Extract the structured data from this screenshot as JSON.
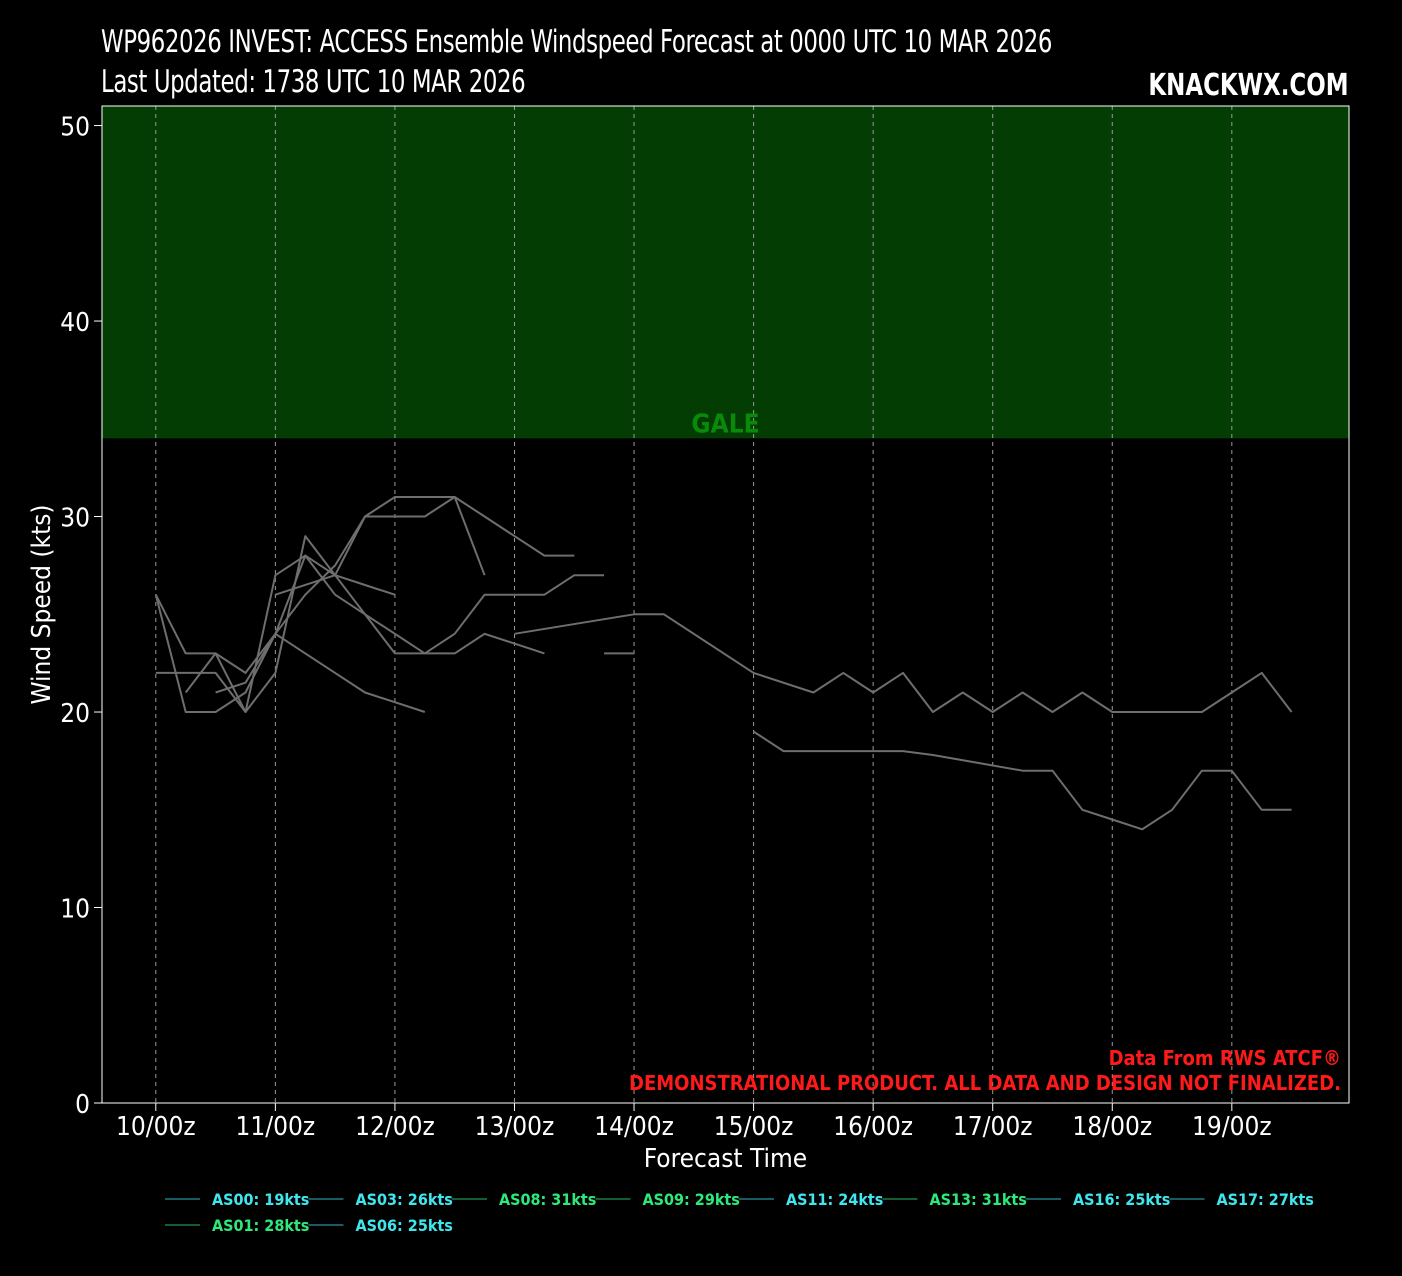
{
  "header": {
    "title": "WP962026 INVEST: ACCESS Ensemble Windspeed Forecast at 0000 UTC 10 MAR 2026",
    "subtitle": "Last Updated: 1738 UTC 10 MAR 2026",
    "brand": "KNACKWX.COM"
  },
  "notes": {
    "source": "Data From RWS ATCF®",
    "disclaimer": "DEMONSTRATIONAL PRODUCT. ALL DATA AND DESIGN NOT FINALIZED."
  },
  "colors": {
    "background": "#000000",
    "gale_band": "#033d03",
    "gale_label": "#0a8a0a",
    "series_line": "#6e6e6e",
    "note_text": "#ff1a1a",
    "legend_cyan": "#3fe6ee",
    "legend_green": "#2ee87a"
  },
  "chart_data": {
    "type": "line",
    "xlabel": "Forecast Time",
    "ylabel": "Wind Speed (kts)",
    "x_unit": "days from 10/00z",
    "xlim": [
      -0.45,
      9.98
    ],
    "ylim": [
      0,
      51
    ],
    "yticks": [
      0,
      10,
      20,
      30,
      40,
      50
    ],
    "xticks": [
      {
        "x": 0,
        "label": "10/00z"
      },
      {
        "x": 1,
        "label": "11/00z"
      },
      {
        "x": 2,
        "label": "12/00z"
      },
      {
        "x": 3,
        "label": "13/00z"
      },
      {
        "x": 4,
        "label": "14/00z"
      },
      {
        "x": 5,
        "label": "15/00z"
      },
      {
        "x": 6,
        "label": "16/00z"
      },
      {
        "x": 7,
        "label": "17/00z"
      },
      {
        "x": 8,
        "label": "18/00z"
      },
      {
        "x": 9,
        "label": "19/00z"
      }
    ],
    "grid": "vertical dashed",
    "threshold_band": {
      "label": "GALE",
      "from": 34,
      "to": 51
    },
    "series": [
      {
        "x": [
          0,
          0.25,
          0.5,
          0.75,
          1.0,
          1.25,
          1.5,
          1.75,
          2.0,
          2.25
        ],
        "y": [
          26,
          20,
          20,
          21,
          24,
          23,
          22,
          21,
          20.5,
          20
        ]
      },
      {
        "x": [
          0,
          0.25,
          0.5,
          0.75,
          1.0,
          1.25,
          1.5,
          1.75,
          2.0
        ],
        "y": [
          22,
          22,
          22,
          20,
          27,
          28,
          27,
          26.5,
          26
        ]
      },
      {
        "x": [
          0,
          0.25,
          0.5,
          0.75,
          1.0,
          1.25,
          1.5,
          1.75,
          2.0,
          2.25,
          2.5,
          2.75,
          3.0,
          3.25
        ],
        "y": [
          26,
          23,
          23,
          22,
          24,
          28,
          26,
          25,
          24,
          23,
          23,
          24,
          23.5,
          23
        ]
      },
      {
        "x": [
          0.25,
          0.5,
          0.75,
          1.0,
          1.25,
          1.5,
          1.75,
          2.0,
          2.25,
          2.5,
          2.75
        ],
        "y": [
          21,
          23,
          20,
          22,
          29,
          27,
          30,
          31,
          31,
          31,
          27
        ]
      },
      {
        "x": [
          0.5,
          0.75,
          1.0,
          1.25,
          1.5,
          1.75,
          2.0,
          2.25,
          2.5,
          2.75,
          3.0,
          3.25,
          3.5
        ],
        "y": [
          21,
          21.5,
          24,
          26,
          27.5,
          30,
          30,
          30,
          31,
          30,
          29,
          28,
          28
        ]
      },
      {
        "x": [
          1.0,
          1.5,
          2.0,
          2.25,
          2.5,
          2.75,
          3.0,
          3.25,
          3.5,
          3.75
        ],
        "y": [
          26,
          27,
          23,
          23,
          24,
          26,
          26,
          26,
          27,
          27
        ]
      },
      {
        "x": [
          3.0,
          4.0,
          4.25,
          5.0,
          5.5,
          5.75,
          6.0,
          6.25,
          6.5,
          6.75,
          7.0,
          7.25,
          7.5,
          7.75,
          8.0,
          8.25,
          8.5,
          8.75,
          9.0,
          9.25,
          9.5
        ],
        "y": [
          24,
          25,
          25,
          22,
          21,
          22,
          21,
          22,
          20,
          21,
          20,
          21,
          20,
          21,
          20,
          20,
          20,
          20,
          21,
          22,
          20
        ]
      },
      {
        "x": [
          3.75,
          4.0
        ],
        "y": [
          23,
          23
        ]
      },
      {
        "x": [
          5.0,
          5.25,
          5.5,
          6.0,
          6.25,
          6.5,
          7.25,
          7.5,
          7.75,
          8.0,
          8.25,
          8.5,
          8.75,
          9.0,
          9.25,
          9.5
        ],
        "y": [
          19,
          18,
          18,
          18,
          18,
          17.8,
          17,
          17,
          15,
          14.5,
          14,
          15,
          17,
          17,
          15,
          15
        ]
      }
    ],
    "legend": {
      "placement": "bottom",
      "entries": [
        {
          "label": "AS00: 19kts",
          "color": "#3fe6ee"
        },
        {
          "label": "AS03: 26kts",
          "color": "#3fe6ee"
        },
        {
          "label": "AS08: 31kts",
          "color": "#2ee87a"
        },
        {
          "label": "AS09: 29kts",
          "color": "#2ee87a"
        },
        {
          "label": "AS11: 24kts",
          "color": "#3fe6ee"
        },
        {
          "label": "AS13: 31kts",
          "color": "#2ee87a"
        },
        {
          "label": "AS16: 25kts",
          "color": "#3fe6ee"
        },
        {
          "label": "AS17: 27kts",
          "color": "#3fe6ee"
        },
        {
          "label": "AS01: 28kts",
          "color": "#2ee87a"
        },
        {
          "label": "AS06: 25kts",
          "color": "#3fe6ee"
        }
      ]
    }
  }
}
